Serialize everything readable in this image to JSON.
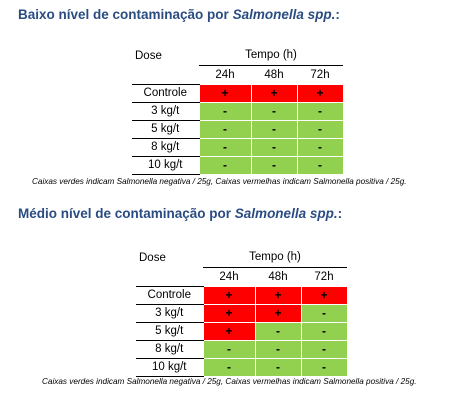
{
  "section1": {
    "title_prefix": "Baixo nível de contaminação por ",
    "title_organism": "Salmonella spp.",
    "title_suffix": ":",
    "dose_header": "Dose",
    "tempo_header": "Tempo (h)",
    "times": [
      "24h",
      "48h",
      "72h"
    ],
    "rows": [
      {
        "label": "Controle",
        "values": [
          "+",
          "+",
          "+"
        ]
      },
      {
        "label": "3 kg/t",
        "values": [
          "-",
          "-",
          "-"
        ]
      },
      {
        "label": "5 kg/t",
        "values": [
          "-",
          "-",
          "-"
        ]
      },
      {
        "label": "8 kg/t",
        "values": [
          "-",
          "-",
          "-"
        ]
      },
      {
        "label": "10 kg/t",
        "values": [
          "-",
          "-",
          "-"
        ]
      }
    ],
    "note": "Caixas verdes indicam Salmonella negativa / 25g, Caixas vermelhas indicam Salmonella positiva / 25g."
  },
  "section2": {
    "title_prefix": "Médio nível de contaminação por ",
    "title_organism": "Salmonella spp.",
    "title_suffix": ":",
    "dose_header": "Dose",
    "tempo_header": "Tempo (h)",
    "times": [
      "24h",
      "48h",
      "72h"
    ],
    "rows": [
      {
        "label": "Controle",
        "values": [
          "+",
          "+",
          "+"
        ]
      },
      {
        "label": "3 kg/t",
        "values": [
          "+",
          "+",
          "-"
        ]
      },
      {
        "label": "5 kg/t",
        "values": [
          "+",
          "-",
          "-"
        ]
      },
      {
        "label": "8 kg/t",
        "values": [
          "-",
          "-",
          "-"
        ]
      },
      {
        "label": "10 kg/t",
        "values": [
          "-",
          "-",
          "-"
        ]
      }
    ],
    "note": "Caixas verdes indicam Salmonella negativa / 25g, Caixas vermelhas indicam Salmonella positiva / 25g."
  },
  "colors": {
    "positive": "#ff0000",
    "negative": "#92d050",
    "heading": "#2a4c83"
  }
}
